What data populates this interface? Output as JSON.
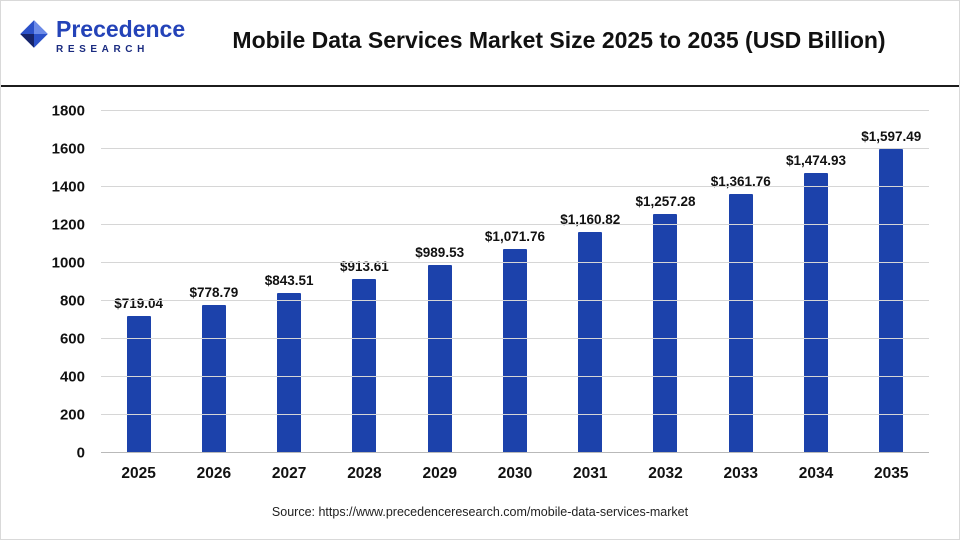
{
  "header": {
    "logo": {
      "name": "Precedence",
      "sub": "RESEARCH"
    },
    "title": "Mobile Data Services Market Size 2025 to 2035 (USD Billion)"
  },
  "chart_data": {
    "type": "bar",
    "title": "Mobile Data Services Market Size 2025 to 2035 (USD Billion)",
    "categories": [
      "2025",
      "2026",
      "2027",
      "2028",
      "2029",
      "2030",
      "2031",
      "2032",
      "2033",
      "2034",
      "2035"
    ],
    "values": [
      719.04,
      778.79,
      843.51,
      913.61,
      989.53,
      1071.76,
      1160.82,
      1257.28,
      1361.76,
      1474.93,
      1597.49
    ],
    "value_labels": [
      "$719.04",
      "$778.79",
      "$843.51",
      "$913.61",
      "$989.53",
      "$1,071.76",
      "$1,160.82",
      "$1,257.28",
      "$1,361.76",
      "$1,474.93",
      "$1,597.49"
    ],
    "xlabel": "",
    "ylabel": "",
    "ylim": [
      0,
      1800
    ],
    "yticks": [
      0,
      200,
      400,
      600,
      800,
      1000,
      1200,
      1400,
      1600,
      1800
    ],
    "grid": true,
    "legend": "none",
    "bar_color": "#1c42ab",
    "source": "Source: https://www.precedenceresearch.com/mobile-data-services-market"
  }
}
